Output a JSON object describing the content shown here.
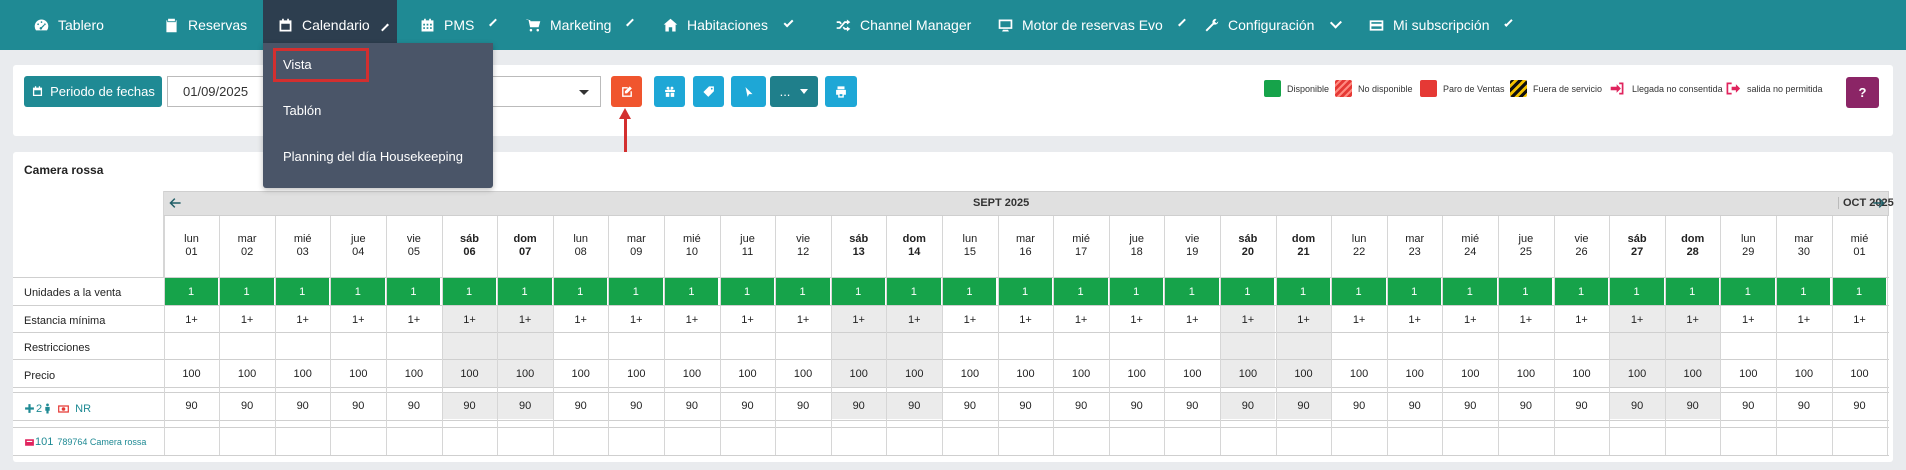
{
  "nav": {
    "items": [
      {
        "label": "Tablero",
        "icon": "dashboard-icon"
      },
      {
        "label": "Reservas",
        "icon": "clipboard-icon"
      },
      {
        "label": "Calendario",
        "icon": "calendar-icon"
      },
      {
        "label": "PMS",
        "icon": "calendar-grid-icon"
      },
      {
        "label": "Marketing",
        "icon": "cart-icon"
      },
      {
        "label": "Habitaciones",
        "icon": "home-icon"
      },
      {
        "label": "Channel Manager",
        "icon": "shuffle-icon"
      },
      {
        "label": "Motor de reservas Evo",
        "icon": "monitor-icon"
      },
      {
        "label": "Configuración",
        "icon": "wrench-icon"
      },
      {
        "label": "Mi subscripción",
        "icon": "credit-card-icon"
      }
    ]
  },
  "dropdown": {
    "items": [
      {
        "label": "Vista"
      },
      {
        "label": "Tablón"
      },
      {
        "label": "Planning del día Housekeeping"
      }
    ],
    "highlight_color": "#d32f2f"
  },
  "toolbar": {
    "period_label": "Periodo de fechas",
    "date_value": "01/09/2025",
    "more_label": "..."
  },
  "legend": [
    {
      "label": "Disponible",
      "color": "#16a34a"
    },
    {
      "label": "No disponible",
      "color": "#e53935"
    },
    {
      "label": "Paro de Ventas",
      "color": "#e53935"
    },
    {
      "label": "Fuera de servicio",
      "color": "#f2c200"
    },
    {
      "label": "Llegada no consentida",
      "color": "#e0245e"
    },
    {
      "label": "salida no permitida",
      "color": "#e0245e"
    }
  ],
  "help_label": "?",
  "calendar": {
    "room_title": "Camera rossa",
    "month_label": "SEPT 2025",
    "next_month_label": "OCT 2025",
    "days": [
      {
        "dow": "lun",
        "num": "01",
        "weekend": false
      },
      {
        "dow": "mar",
        "num": "02",
        "weekend": false
      },
      {
        "dow": "mié",
        "num": "03",
        "weekend": false
      },
      {
        "dow": "jue",
        "num": "04",
        "weekend": false
      },
      {
        "dow": "vie",
        "num": "05",
        "weekend": false
      },
      {
        "dow": "sáb",
        "num": "06",
        "weekend": true
      },
      {
        "dow": "dom",
        "num": "07",
        "weekend": true
      },
      {
        "dow": "lun",
        "num": "08",
        "weekend": false
      },
      {
        "dow": "mar",
        "num": "09",
        "weekend": false
      },
      {
        "dow": "mié",
        "num": "10",
        "weekend": false
      },
      {
        "dow": "jue",
        "num": "11",
        "weekend": false
      },
      {
        "dow": "vie",
        "num": "12",
        "weekend": false
      },
      {
        "dow": "sáb",
        "num": "13",
        "weekend": true
      },
      {
        "dow": "dom",
        "num": "14",
        "weekend": true
      },
      {
        "dow": "lun",
        "num": "15",
        "weekend": false
      },
      {
        "dow": "mar",
        "num": "16",
        "weekend": false
      },
      {
        "dow": "mié",
        "num": "17",
        "weekend": false
      },
      {
        "dow": "jue",
        "num": "18",
        "weekend": false
      },
      {
        "dow": "vie",
        "num": "19",
        "weekend": false
      },
      {
        "dow": "sáb",
        "num": "20",
        "weekend": true
      },
      {
        "dow": "dom",
        "num": "21",
        "weekend": true
      },
      {
        "dow": "lun",
        "num": "22",
        "weekend": false
      },
      {
        "dow": "mar",
        "num": "23",
        "weekend": false
      },
      {
        "dow": "mié",
        "num": "24",
        "weekend": false
      },
      {
        "dow": "jue",
        "num": "25",
        "weekend": false
      },
      {
        "dow": "vie",
        "num": "26",
        "weekend": false
      },
      {
        "dow": "sáb",
        "num": "27",
        "weekend": true
      },
      {
        "dow": "dom",
        "num": "28",
        "weekend": true
      },
      {
        "dow": "lun",
        "num": "29",
        "weekend": false
      },
      {
        "dow": "mar",
        "num": "30",
        "weekend": false
      },
      {
        "dow": "mié",
        "num": "01",
        "weekend": false
      }
    ],
    "rows": {
      "units_label": "Unidades a la venta",
      "units_value": "1",
      "minstay_label": "Estancia mínima",
      "minstay_value": "1+",
      "restrictions_label": "Restricciones",
      "price_label": "Precio",
      "price_value": "100",
      "rate_value": "90"
    },
    "rate_plan": {
      "occupancy": "2",
      "code": "NR"
    },
    "room_link": {
      "number": "101",
      "text": "789764 Camera rossa"
    }
  }
}
